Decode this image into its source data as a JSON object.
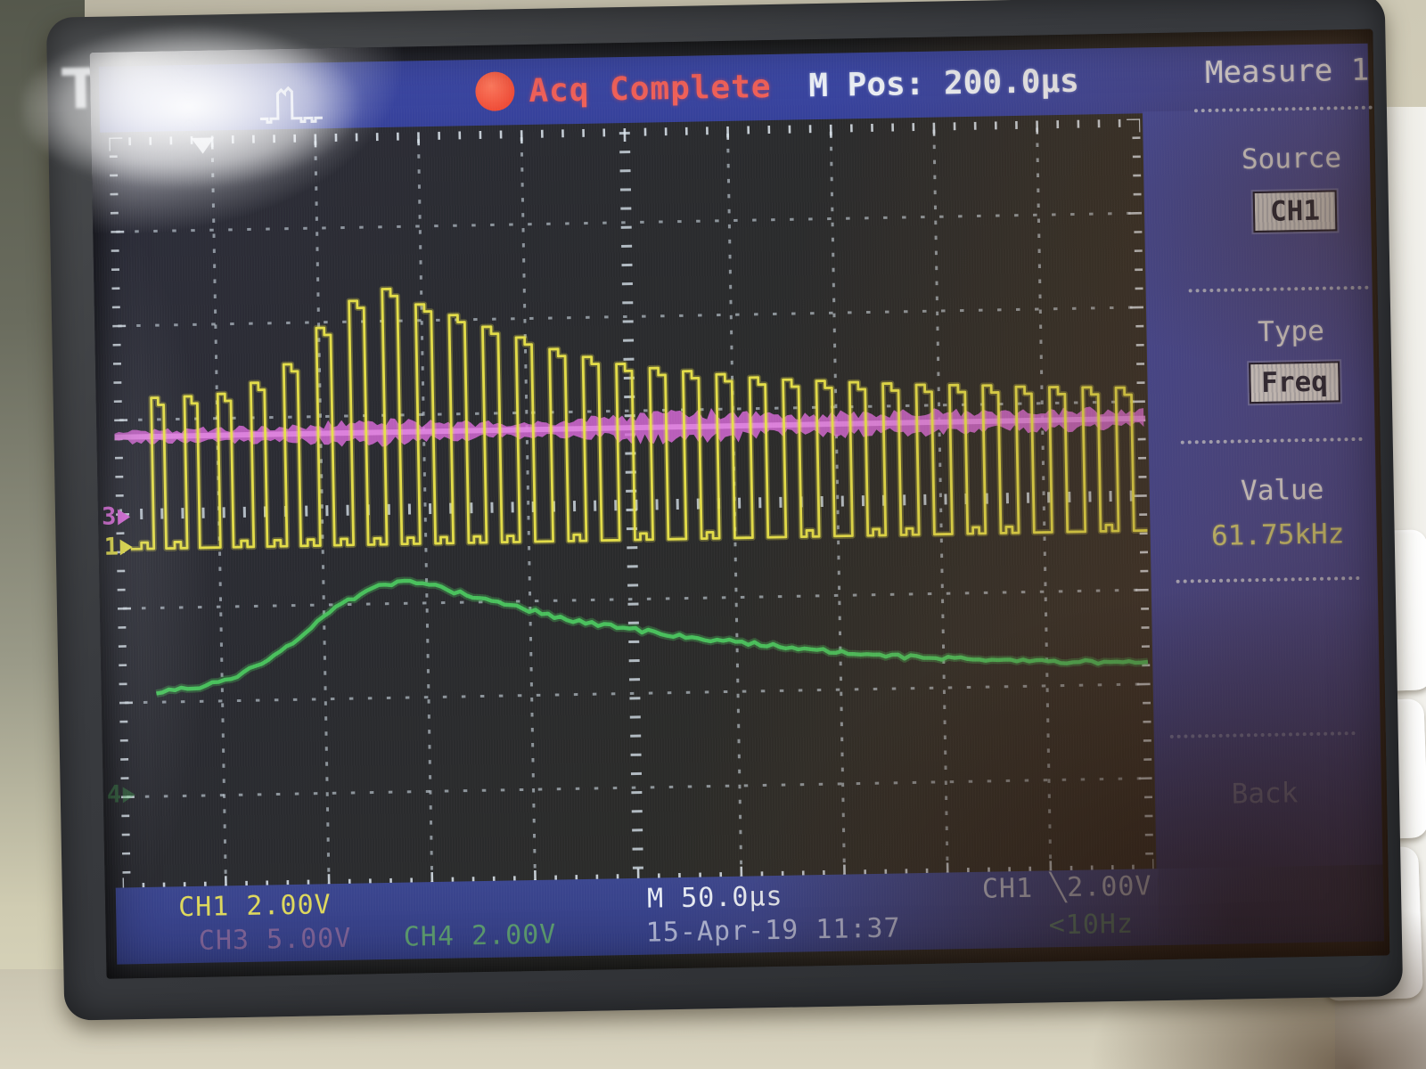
{
  "brand": "Tek",
  "topbar": {
    "acq_status": "Acq Complete",
    "m_pos": "M Pos: 200.0µs"
  },
  "menu": {
    "title": "Measure 1",
    "source_label": "Source",
    "source_value": "CH1",
    "type_label": "Type",
    "type_value": "Freq",
    "value_label": "Value",
    "value_reading": "61.75kHz",
    "back_label": "Back"
  },
  "readouts": {
    "ch1_scale": "CH1 2.00V",
    "ch3_scale": "CH3 5.00V",
    "ch4_scale": "CH4 2.00V",
    "timebase": "M 50.0µs",
    "trigger_source": "CH1 ╲2.00V",
    "datetime": "15-Apr-19 11:37",
    "trigger_freq": "<10Hz"
  },
  "markers": {
    "ch1": "1",
    "ch3": "3",
    "ch4": "4"
  },
  "colors": {
    "ch1_yellow": "#e6e049",
    "ch3_magenta": "#d96ad9",
    "ch4_green": "#4bc65e",
    "acq_red": "#f05a4e",
    "menu_blue": "#3c48a4",
    "grid_dot": "#cdd9e2",
    "value_yellow": "#d6d87e"
  },
  "chart_data": {
    "type": "line",
    "title": "Tek oscilloscope acquisition — Measure 1 Freq(CH1) = 61.75kHz",
    "x_axis": {
      "per_div_us": 50.0,
      "divisions": 10,
      "m_pos_us": 200.0
    },
    "y_axis": {
      "divisions": 8,
      "ch1_volts_per_div": 2.0,
      "ch3_volts_per_div": 5.0,
      "ch4_volts_per_div": 2.0
    },
    "series": [
      {
        "name": "CH1",
        "kind": "pwm_pulse_train",
        "color": "#e6e049",
        "freq_khz": 61.75,
        "baseline_div": 4.37,
        "first_pulse_x_div": 0.363,
        "period_div": 0.3226,
        "high_width_div": 0.15,
        "pulse_top_div": [
          2.77,
          2.76,
          2.74,
          2.63,
          2.44,
          2.06,
          1.78,
          1.66,
          1.83,
          1.95,
          2.08,
          2.2,
          2.33,
          2.42,
          2.5,
          2.55,
          2.59,
          2.63,
          2.67,
          2.7,
          2.72,
          2.74,
          2.76,
          2.78,
          2.79,
          2.8,
          2.82,
          2.83,
          2.84,
          2.85
        ]
      },
      {
        "name": "CH3",
        "kind": "noise_band",
        "color": "#d96ad9",
        "center_div": 3.18,
        "amplitude_env_div": [
          [
            0,
            0.07
          ],
          [
            1,
            0.09
          ],
          [
            1.8,
            0.1
          ],
          [
            2.4,
            0.16
          ],
          [
            2.8,
            0.13
          ],
          [
            3.2,
            0.11
          ],
          [
            3.6,
            0.1
          ],
          [
            4.2,
            0.09
          ],
          [
            5.0,
            0.16
          ],
          [
            5.6,
            0.19
          ],
          [
            6.1,
            0.16
          ],
          [
            6.6,
            0.11
          ],
          [
            7.1,
            0.14
          ],
          [
            7.6,
            0.15
          ],
          [
            8.1,
            0.13
          ],
          [
            8.7,
            0.12
          ],
          [
            9.3,
            0.13
          ],
          [
            10,
            0.1
          ]
        ]
      },
      {
        "name": "CH4",
        "kind": "smooth_curve",
        "color": "#4bc65e",
        "points_div": [
          [
            0.36,
            5.89
          ],
          [
            0.8,
            5.85
          ],
          [
            1.23,
            5.7
          ],
          [
            1.66,
            5.42
          ],
          [
            2.09,
            5.04
          ],
          [
            2.52,
            4.81
          ],
          [
            2.78,
            4.76
          ],
          [
            3.04,
            4.81
          ],
          [
            3.39,
            4.92
          ],
          [
            3.82,
            5.04
          ],
          [
            4.25,
            5.18
          ],
          [
            4.77,
            5.28
          ],
          [
            5.29,
            5.37
          ],
          [
            5.81,
            5.45
          ],
          [
            6.33,
            5.52
          ],
          [
            6.85,
            5.58
          ],
          [
            7.36,
            5.64
          ],
          [
            7.88,
            5.68
          ],
          [
            8.4,
            5.71
          ],
          [
            8.92,
            5.73
          ],
          [
            9.61,
            5.77
          ],
          [
            10.0,
            5.78
          ]
        ]
      }
    ]
  }
}
